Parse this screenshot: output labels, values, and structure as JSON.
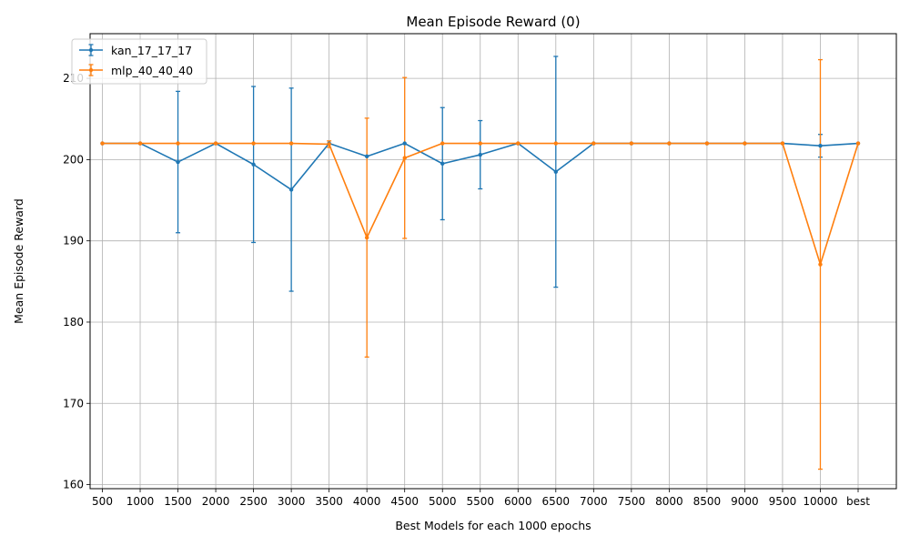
{
  "chart_data": {
    "type": "line",
    "title": "Mean Episode Reward (0)",
    "xlabel": "Best Models for each 1000 epochs",
    "ylabel": "Mean Episode Reward",
    "categories": [
      "500",
      "1000",
      "1500",
      "2000",
      "2500",
      "3000",
      "3500",
      "4000",
      "4500",
      "5000",
      "5500",
      "6000",
      "6500",
      "7000",
      "7500",
      "8000",
      "8500",
      "9000",
      "9500",
      "10000",
      "best"
    ],
    "ylim": [
      159.5,
      215.5
    ],
    "yticks": [
      160,
      170,
      180,
      190,
      200,
      210
    ],
    "grid": true,
    "legend_position": "top-left",
    "error_bars": true,
    "series": [
      {
        "name": "kan_17_17_17",
        "color": "#1f77b4",
        "values": [
          202.0,
          202.0,
          199.7,
          202.0,
          199.4,
          196.3,
          202.0,
          200.4,
          202.0,
          199.5,
          200.6,
          202.0,
          198.5,
          202.0,
          202.0,
          202.0,
          202.0,
          202.0,
          202.0,
          201.7,
          202.0
        ],
        "errors": [
          0,
          0,
          8.7,
          0,
          9.6,
          12.5,
          0,
          0,
          0,
          6.9,
          4.2,
          0,
          14.2,
          0,
          0,
          0,
          0,
          0,
          0,
          1.4,
          0
        ]
      },
      {
        "name": "mlp_40_40_40",
        "color": "#ff7f0e",
        "values": [
          202.0,
          202.0,
          202.0,
          202.0,
          202.0,
          202.0,
          201.9,
          190.4,
          200.2,
          202.0,
          202.0,
          202.0,
          202.0,
          202.0,
          202.0,
          202.0,
          202.0,
          202.0,
          202.0,
          187.1,
          202.0
        ],
        "errors": [
          0,
          0,
          0,
          0,
          0,
          0,
          0.4,
          14.7,
          9.9,
          0,
          0,
          0,
          0,
          0,
          0,
          0,
          0,
          0,
          0,
          25.2,
          0
        ]
      }
    ]
  }
}
